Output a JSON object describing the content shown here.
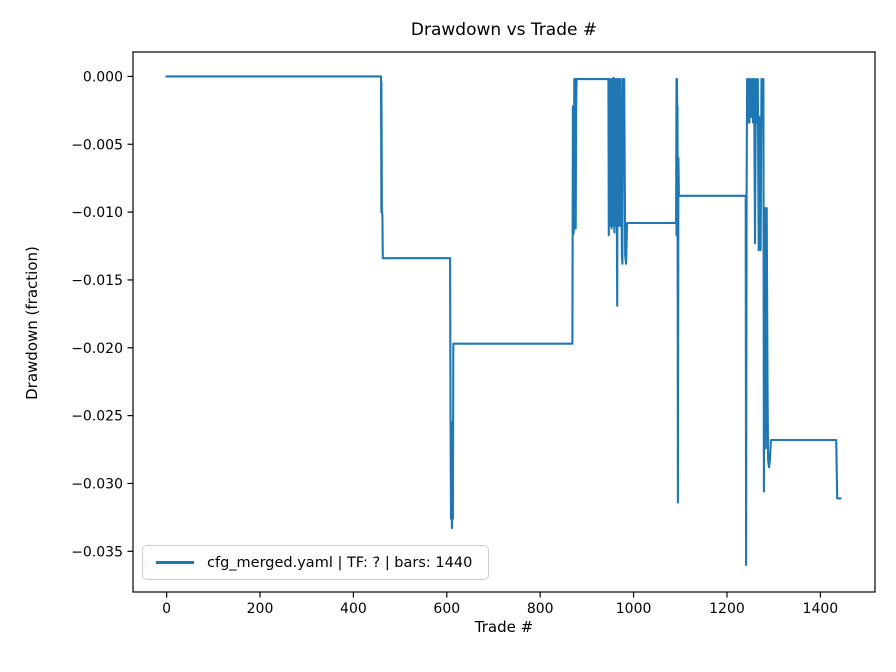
{
  "figure": {
    "background_color": "#ffffff",
    "text_color": "#000000",
    "spine_color": "#000000",
    "legend_border_color": "#cccccc"
  },
  "chart_data": {
    "type": "line",
    "title": "Drawdown vs Trade #",
    "xlabel": "Trade #",
    "ylabel": "Drawdown (fraction)",
    "xlim": [
      -72,
      1517
    ],
    "ylim": [
      -0.038,
      0.0018
    ],
    "grid": false,
    "x_ticks": [
      0,
      200,
      400,
      600,
      800,
      1000,
      1200,
      1400
    ],
    "x_tick_labels": [
      "0",
      "200",
      "400",
      "600",
      "800",
      "1000",
      "1200",
      "1400"
    ],
    "y_ticks": [
      0.0,
      -0.005,
      -0.01,
      -0.015,
      -0.02,
      -0.025,
      -0.03,
      -0.035
    ],
    "y_tick_labels": [
      "0.000",
      "−0.005",
      "−0.010",
      "−0.015",
      "−0.020",
      "−0.025",
      "−0.030",
      "−0.035"
    ],
    "legend": {
      "position": "lower left",
      "entries": [
        {
          "label": "cfg_merged.yaml | TF: ? | bars: 1440",
          "color": "#1f77b4"
        }
      ]
    },
    "series": [
      {
        "name": "cfg_merged.yaml | TF: ? | bars: 1440",
        "color": "#1f77b4",
        "line_width": 2.1,
        "points": [
          [
            0,
            0
          ],
          [
            459,
            0
          ],
          [
            460,
            -0.01
          ],
          [
            460,
            -0.0004
          ],
          [
            461,
            -0.01
          ],
          [
            462,
            -0.0102
          ],
          [
            463,
            -0.0134
          ],
          [
            607,
            -0.0134
          ],
          [
            608,
            -0.0249
          ],
          [
            609,
            -0.0326
          ],
          [
            610,
            -0.0255
          ],
          [
            611,
            -0.0333
          ],
          [
            612,
            -0.032
          ],
          [
            613,
            -0.0326
          ],
          [
            614,
            -0.0197
          ],
          [
            869,
            -0.0197
          ],
          [
            870,
            -0.0022
          ],
          [
            870,
            -0.0117
          ],
          [
            871,
            -0.0022
          ],
          [
            872,
            -0.0115
          ],
          [
            873,
            -0.0002
          ],
          [
            874,
            -0.011
          ],
          [
            875,
            -0.0002
          ],
          [
            876,
            -0.0112
          ],
          [
            877,
            -0.0025
          ],
          [
            878,
            -0.0002
          ],
          [
            946,
            -0.0002
          ],
          [
            947,
            -0.0117
          ],
          [
            948,
            -0.0002
          ],
          [
            950,
            -0.011
          ],
          [
            951,
            -0.0002
          ],
          [
            953,
            -0.0112
          ],
          [
            954,
            -0.0002
          ],
          [
            956,
            -0.011
          ],
          [
            957,
            -0.0001
          ],
          [
            959,
            -0.0115
          ],
          [
            960,
            -0.0002
          ],
          [
            962,
            -0.011
          ],
          [
            963,
            -0.0002
          ],
          [
            965,
            -0.0169
          ],
          [
            966,
            -0.0002
          ],
          [
            968,
            -0.011
          ],
          [
            969,
            -0.0002
          ],
          [
            971,
            -0.011
          ],
          [
            972,
            -0.0002
          ],
          [
            975,
            -0.0132
          ],
          [
            976,
            -0.0138
          ],
          [
            977,
            -0.0002
          ],
          [
            980,
            -0.0002
          ],
          [
            982,
            -0.0132
          ],
          [
            984,
            -0.0138
          ],
          [
            986,
            -0.0108
          ],
          [
            1091,
            -0.0108
          ],
          [
            1092,
            -0.0002
          ],
          [
            1092,
            -0.0117
          ],
          [
            1093,
            -0.0002
          ],
          [
            1094,
            -0.0084
          ],
          [
            1094,
            -0.0022
          ],
          [
            1095,
            -0.0314
          ],
          [
            1096,
            -0.006
          ],
          [
            1097,
            -0.0088
          ],
          [
            1240,
            -0.0088
          ],
          [
            1241,
            -0.036
          ],
          [
            1242,
            -0.0088
          ],
          [
            1243,
            -0.0002
          ],
          [
            1244,
            -0.0034
          ],
          [
            1246,
            -0.0002
          ],
          [
            1248,
            -0.0034
          ],
          [
            1250,
            -0.0002
          ],
          [
            1252,
            -0.003
          ],
          [
            1254,
            -0.0002
          ],
          [
            1256,
            -0.0034
          ],
          [
            1258,
            -0.0002
          ],
          [
            1260,
            -0.0123
          ],
          [
            1262,
            -0.0002
          ],
          [
            1264,
            -0.0034
          ],
          [
            1266,
            -0.0002
          ],
          [
            1268,
            -0.0128
          ],
          [
            1270,
            -0.003
          ],
          [
            1272,
            -0.0128
          ],
          [
            1274,
            -0.0002
          ],
          [
            1276,
            -0.0034
          ],
          [
            1278,
            -0.0002
          ],
          [
            1279,
            -0.0306
          ],
          [
            1281,
            -0.0097
          ],
          [
            1283,
            -0.0274
          ],
          [
            1285,
            -0.0097
          ],
          [
            1287,
            -0.0238
          ],
          [
            1288,
            -0.0283
          ],
          [
            1290,
            -0.0288
          ],
          [
            1292,
            -0.0283
          ],
          [
            1294,
            -0.0268
          ],
          [
            1434,
            -0.0268
          ],
          [
            1436,
            -0.0311
          ],
          [
            1443,
            -0.0311
          ]
        ]
      }
    ]
  }
}
